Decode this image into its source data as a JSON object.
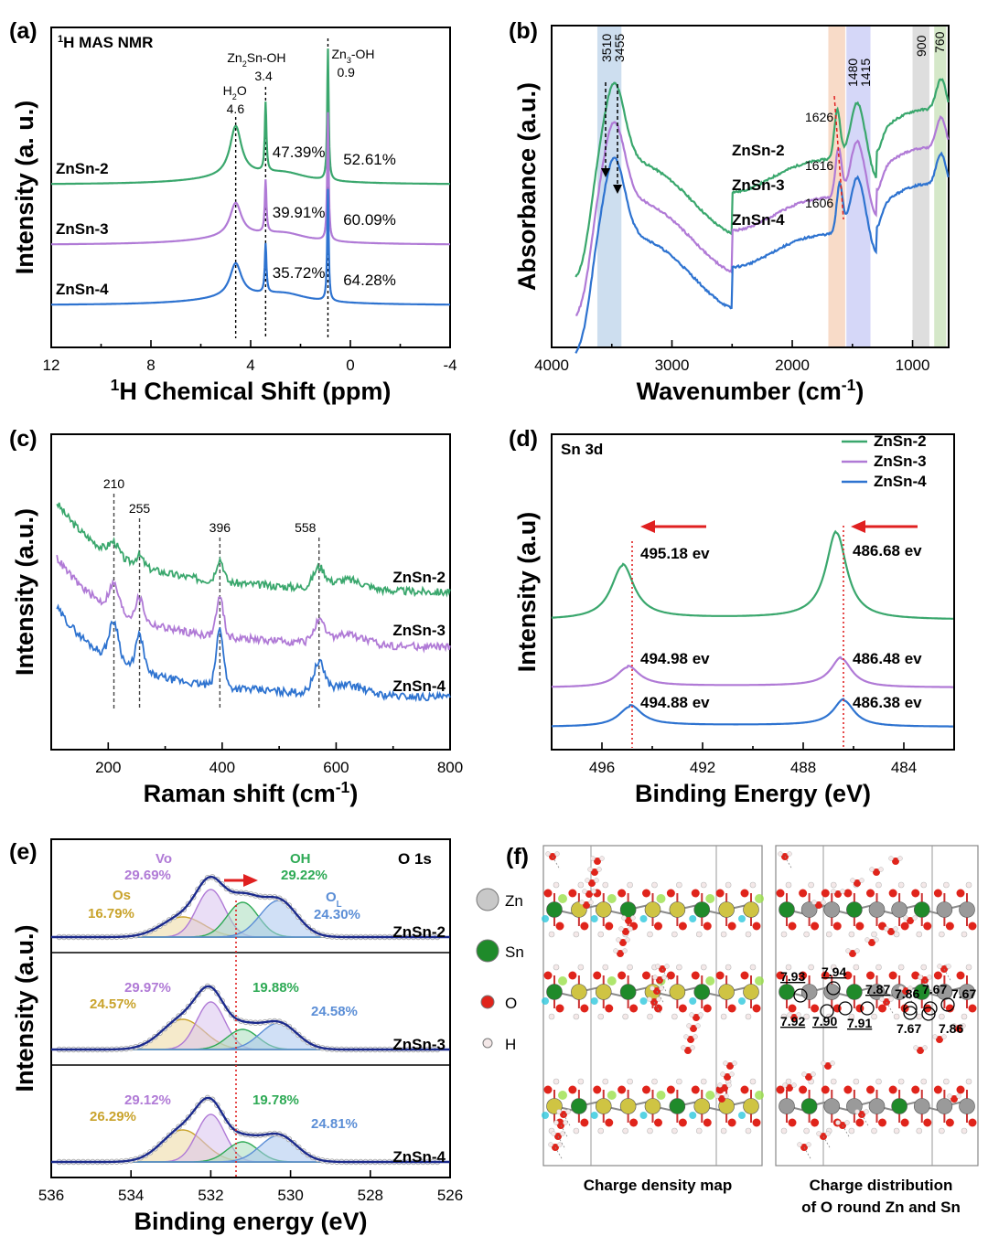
{
  "chart_data": [
    {
      "panel": "(a)",
      "type": "line",
      "title": "1H MAS NMR",
      "xlabel": "1H Chemical Shift (ppm)",
      "ylabel": "Intensity (a. u.)",
      "xlim": [
        12,
        -4
      ],
      "xticks": [
        "12",
        "8",
        "4",
        "0",
        "-4"
      ],
      "peaks": [
        {
          "name": "H2O",
          "ppm": 4.6,
          "label": "4.6"
        },
        {
          "name": "Zn2Sn-OH",
          "ppm": 3.4,
          "label": "3.4"
        },
        {
          "name": "Zn3-OH",
          "ppm": 0.9,
          "label": "0.9"
        }
      ],
      "series": [
        {
          "name": "ZnSn-2",
          "color": "#3aa76d",
          "offset": 0.78,
          "h": [
            0.3,
            0.42,
            0.8
          ],
          "pct": [
            "47.39%",
            "52.61%"
          ]
        },
        {
          "name": "ZnSn-3",
          "color": "#b07ad6",
          "offset": 0.45,
          "h": [
            0.2,
            0.32,
            0.78
          ],
          "pct": [
            "39.91%",
            "60.09%"
          ]
        },
        {
          "name": "ZnSn-4",
          "color": "#2e73d0",
          "offset": 0.12,
          "h": [
            0.2,
            0.3,
            0.68
          ],
          "pct": [
            "35.72%",
            "64.28%"
          ]
        }
      ]
    },
    {
      "panel": "(b)",
      "type": "line",
      "xlabel": "Wavenumber (cm-1)",
      "ylabel": "Absorbance (a.u.)",
      "xlim": [
        4000,
        700
      ],
      "xticks": [
        "4000",
        "3000",
        "2000",
        "1000"
      ],
      "bands": [
        {
          "from": 3620,
          "to": 3420,
          "color": "#bcd3ea"
        },
        {
          "from": 1700,
          "to": 1560,
          "color": "#f5cfb5"
        },
        {
          "from": 1550,
          "to": 1350,
          "color": "#c7c9f5"
        },
        {
          "from": 1000,
          "to": 860,
          "color": "#d3d3d3"
        },
        {
          "from": 820,
          "to": 720,
          "color": "#c7e0b7"
        }
      ],
      "annotations": [
        "3510",
        "3455",
        "1480",
        "1415",
        "900",
        "760",
        "1626",
        "1616",
        "1606"
      ],
      "series": [
        {
          "name": "ZnSn-2",
          "color": "#3aa76d"
        },
        {
          "name": "ZnSn-3",
          "color": "#b07ad6"
        },
        {
          "name": "ZnSn-4",
          "color": "#2e73d0"
        }
      ]
    },
    {
      "panel": "(c)",
      "type": "line",
      "xlabel": "Raman shift (cm-1)",
      "ylabel": "Intensity (a.u.)",
      "xlim": [
        100,
        800
      ],
      "xticks": [
        "200",
        "400",
        "600",
        "800"
      ],
      "peaks": [
        "210",
        "255",
        "396",
        "558"
      ],
      "series": [
        {
          "name": "ZnSn-2",
          "color": "#3aa76d"
        },
        {
          "name": "ZnSn-3",
          "color": "#b07ad6"
        },
        {
          "name": "ZnSn-4",
          "color": "#2e73d0"
        }
      ]
    },
    {
      "panel": "(d)",
      "type": "line",
      "title": "Sn 3d",
      "xlabel": "Binding Energy (eV)",
      "ylabel": "Intensity (a.u)",
      "xlim": [
        498,
        482
      ],
      "xticks": [
        "496",
        "492",
        "488",
        "484"
      ],
      "series": [
        {
          "name": "ZnSn-2",
          "color": "#3aa76d",
          "peaks": [
            "495.18 ev",
            "486.68 ev"
          ]
        },
        {
          "name": "ZnSn-3",
          "color": "#b07ad6",
          "peaks": [
            "494.98 ev",
            "486.48 ev"
          ]
        },
        {
          "name": "ZnSn-4",
          "color": "#2e73d0",
          "peaks": [
            "494.88 ev",
            "486.38 ev"
          ]
        }
      ]
    },
    {
      "panel": "(e)",
      "type": "area",
      "title": "O 1s",
      "xlabel": "Binding energy (eV)",
      "ylabel": "Intensity (a.u.)",
      "xlim": [
        536,
        526
      ],
      "xticks": [
        "536",
        "534",
        "532",
        "530",
        "528",
        "526"
      ],
      "components": [
        {
          "name": "Os",
          "color": "#c9a32c"
        },
        {
          "name": "Vo",
          "color": "#b07ad6"
        },
        {
          "name": "OH",
          "color": "#2eaa55"
        },
        {
          "name": "OL",
          "color": "#5b8ed6"
        }
      ],
      "series": [
        {
          "name": "ZnSn-2",
          "values": {
            "Os": "16.79%",
            "Vo": "29.69%",
            "OH": "29.22%",
            "OL": "24.30%"
          }
        },
        {
          "name": "ZnSn-3",
          "values": {
            "Os": "24.57%",
            "Vo": "29.97%",
            "OH": "19.88%",
            "OL": "24.58%"
          }
        },
        {
          "name": "ZnSn-4",
          "values": {
            "Os": "26.29%",
            "Vo": "29.12%",
            "OH": "19.78%",
            "OL": "24.81%"
          }
        }
      ]
    }
  ],
  "panel_f": {
    "label": "(f)",
    "legend": [
      "Zn",
      "Sn",
      "O",
      "H"
    ],
    "caption_left": "Charge density map",
    "caption_right_1": "Charge distribution",
    "caption_right_2": "of O round Zn and Sn",
    "charges": [
      "7.93",
      "7.94",
      "7.87",
      "7.86",
      "7.67",
      "7.67",
      "7.92",
      "7.90",
      "7.91",
      "7.67",
      "7.86"
    ]
  }
}
